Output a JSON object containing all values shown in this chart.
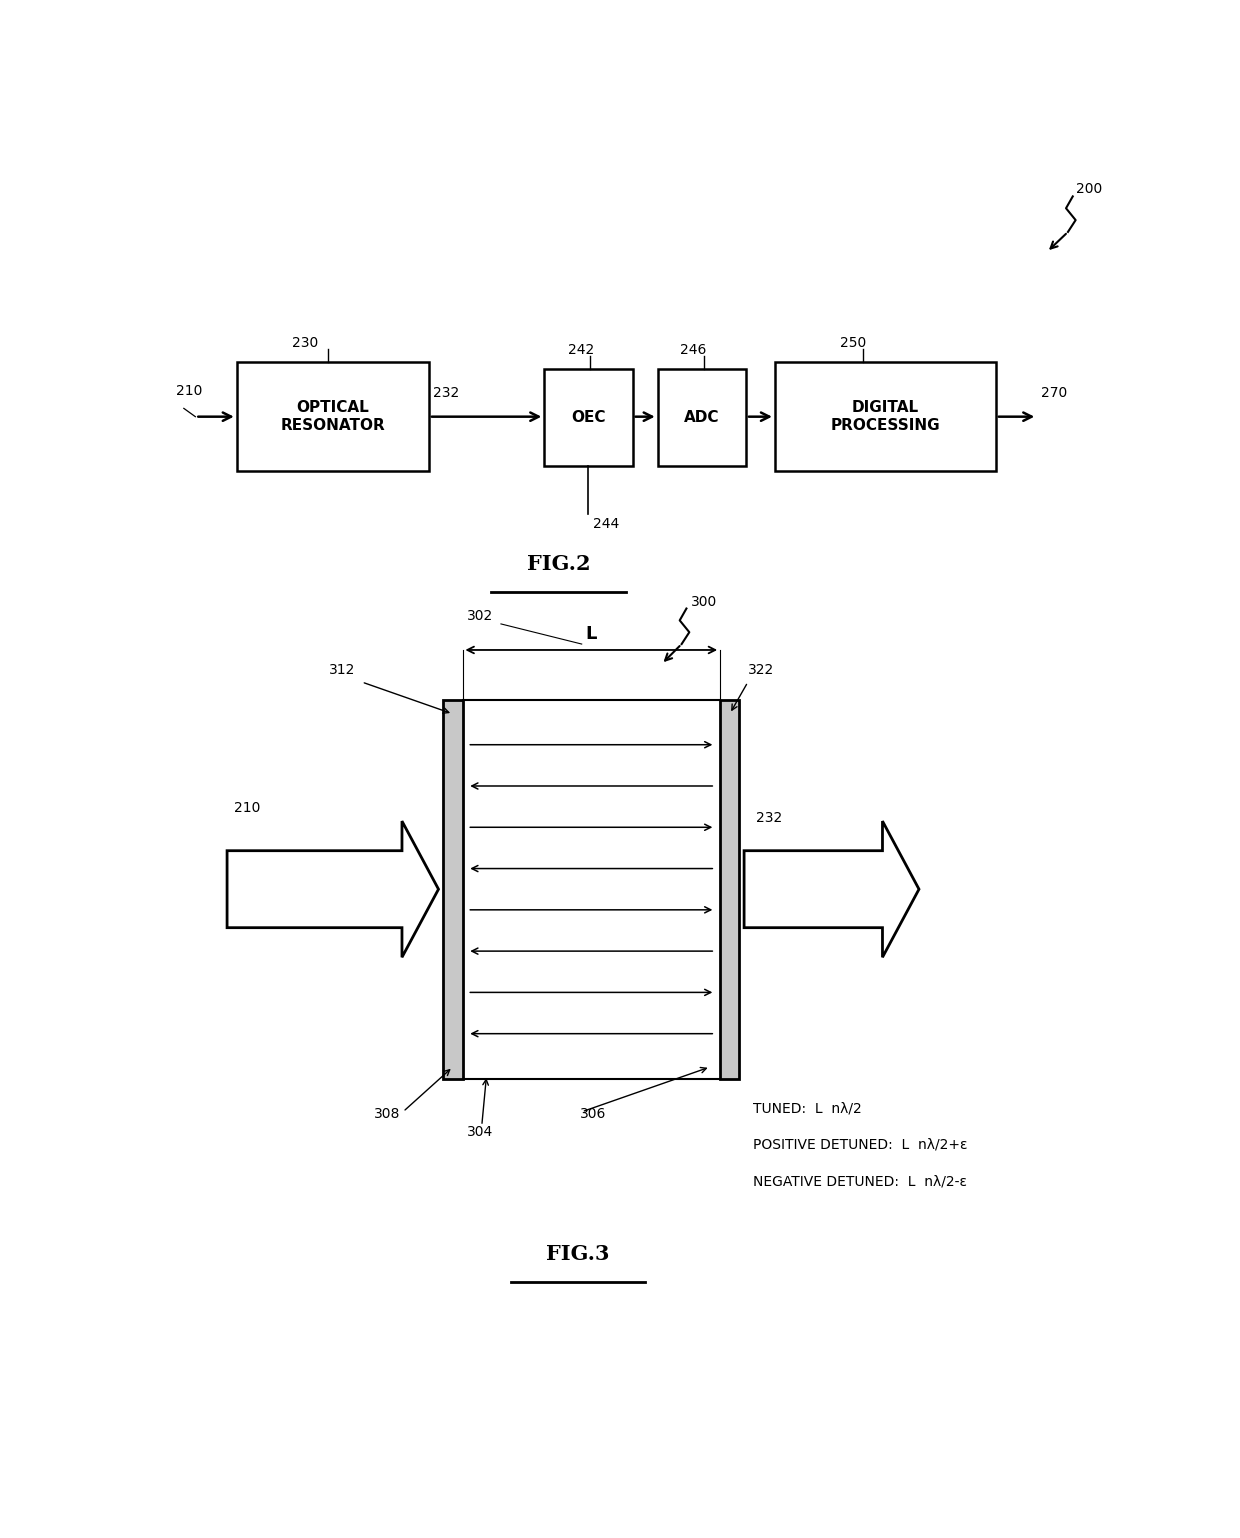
{
  "background_color": "#ffffff",
  "lw": 1.8,
  "fs_ref": 10,
  "fs_label": 11,
  "fig2_label": "FIG.2",
  "fig3_label": "FIG.3",
  "ref_200": "200",
  "ref_300": "300",
  "tuned_text": "TUNED:  L  nλ/2",
  "pos_detuned_text": "POSITIVE DETUNED:  L  nλ/2+ε",
  "neg_detuned_text": "NEGATIVE DETUNED:  L  nλ/2-ε"
}
